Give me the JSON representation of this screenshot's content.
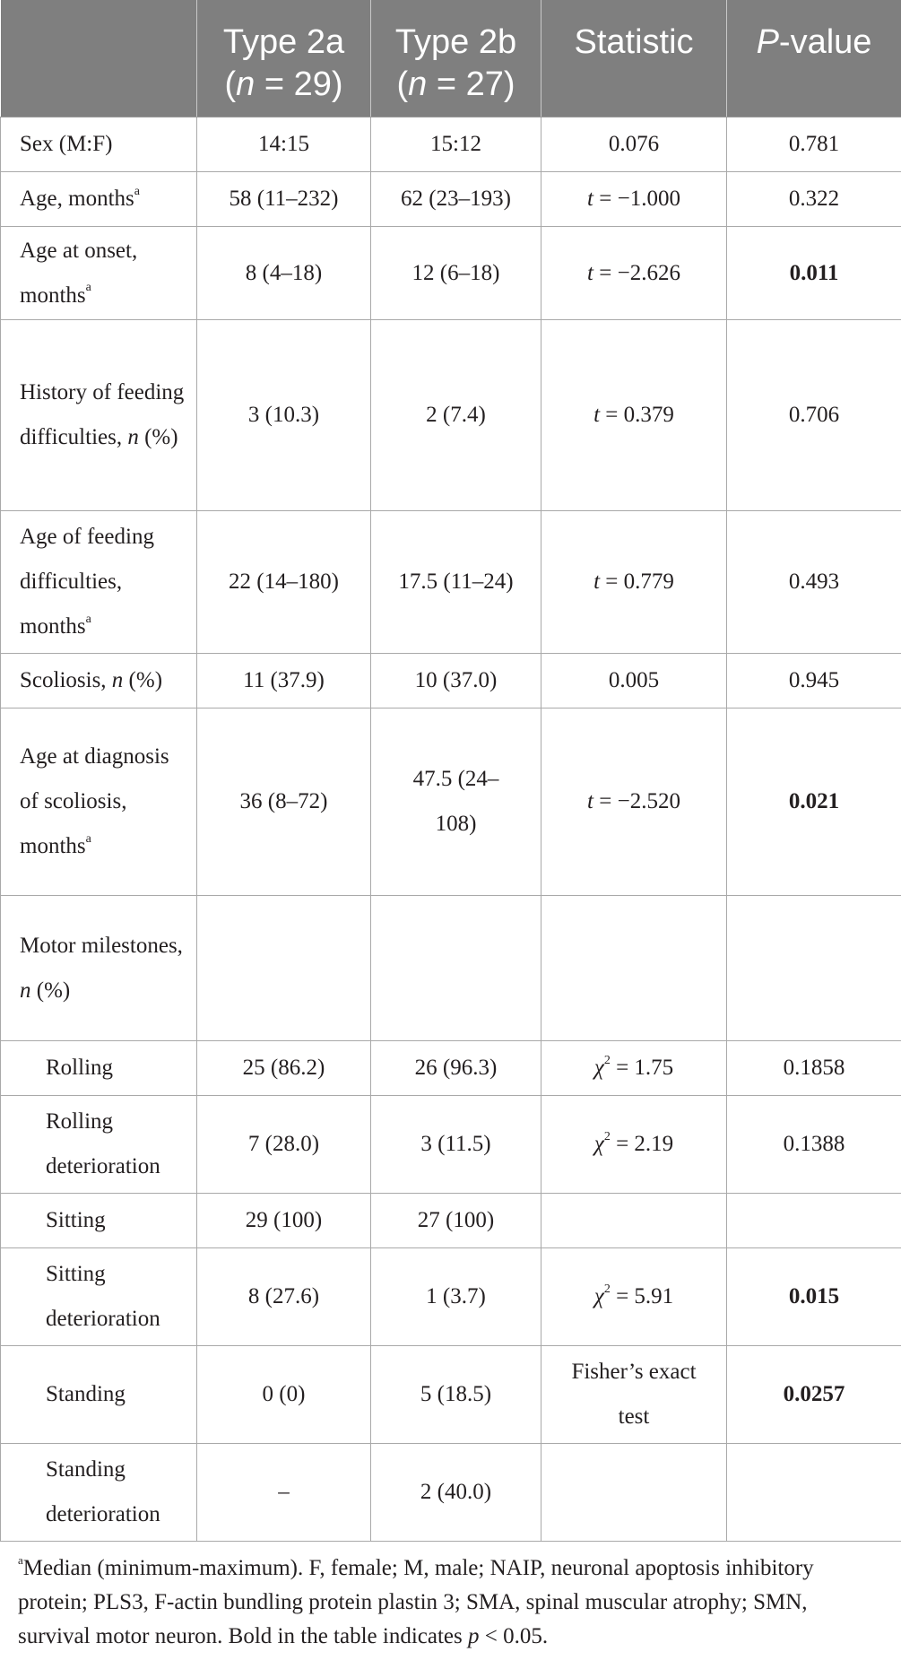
{
  "header": {
    "col1": "",
    "col2_line1": "Type 2a",
    "col2_n": "n",
    "col2_val": " = 29)",
    "col3_line1": "Type 2b",
    "col3_n": "n",
    "col3_val": " = 27)",
    "col4": "Statistic",
    "col5_p": "P",
    "col5_rest": "-value"
  },
  "rows": {
    "sex": {
      "label": "Sex (M:F)",
      "a": "14:15",
      "b": "15:12",
      "stat": "0.076",
      "p": "0.781"
    },
    "age": {
      "label": "Age, months",
      "sup": "a",
      "a": "58 (11–232)",
      "b": "62 (23–193)",
      "stat_t": "t",
      "stat": " = −1.000",
      "p": "0.322"
    },
    "onset": {
      "label": "Age at onset, months",
      "sup": "a",
      "a": "8 (4–18)",
      "b": "12 (6–18)",
      "stat_t": "t",
      "stat": " = −2.626",
      "p": "0.011"
    },
    "feeding_hist": {
      "label": "History of feeding difficulties, ",
      "label_n": "n",
      "label_tail": " (%)",
      "a": "3 (10.3)",
      "b": "2 (7.4)",
      "stat_t": "t",
      "stat": " = 0.379",
      "p": "0.706"
    },
    "feeding_age": {
      "label": "Age of feeding difficulties, months",
      "sup": "a",
      "a": "22 (14–180)",
      "b": "17.5 (11–24)",
      "stat_t": "t",
      "stat": " = 0.779",
      "p": "0.493"
    },
    "scoliosis": {
      "label": "Scoliosis, ",
      "label_n": "n",
      "label_tail": " (%)",
      "a": "11 (37.9)",
      "b": "10 (37.0)",
      "stat": "0.005",
      "p": "0.945"
    },
    "scoliosis_age": {
      "label": "Age at diagnosis of scoliosis, months",
      "sup": "a",
      "a": "36 (8–72)",
      "b": "47.5 (24–108)",
      "stat_t": "t",
      "stat": " = −2.520",
      "p": "0.021"
    },
    "motor": {
      "label": "Motor milestones, ",
      "label_n": "n",
      "label_tail": " (%)"
    },
    "rolling": {
      "label": "Rolling",
      "a": "25 (86.2)",
      "b": "26 (96.3)",
      "stat_chi": "χ",
      "stat_sup": "2",
      "stat": " = 1.75",
      "p": "0.1858"
    },
    "rolling_det": {
      "label": "Rolling deterioration",
      "a": "7 (28.0)",
      "b": "3 (11.5)",
      "stat_chi": "χ",
      "stat_sup": "2",
      "stat": " = 2.19",
      "p": "0.1388"
    },
    "sitting": {
      "label": "Sitting",
      "a": "29 (100)",
      "b": "27 (100)",
      "stat": "",
      "p": ""
    },
    "sitting_det": {
      "label": "Sitting deterioration",
      "a": "8 (27.6)",
      "b": "1 (3.7)",
      "stat_chi": "χ",
      "stat_sup": "2",
      "stat": " = 5.91",
      "p": "0.015"
    },
    "standing": {
      "label": "Standing",
      "a": "0 (0)",
      "b": "5 (18.5)",
      "stat": "Fisher’s exact test",
      "p": "0.0257"
    },
    "standing_det": {
      "label": "Standing deterioration",
      "a": "–",
      "b": "2 (40.0)",
      "stat": "",
      "p": ""
    }
  },
  "footnote": {
    "sup": "a",
    "text1": "Median (minimum-maximum). F, female; M, male; NAIP, neuronal apoptosis inhibitory protein; PLS3, F-actin bundling protein plastin 3; SMA, spinal muscular atrophy; SMN, survival motor neuron. Bold in the table indicates ",
    "p": "p",
    "text2": " < 0.05."
  }
}
